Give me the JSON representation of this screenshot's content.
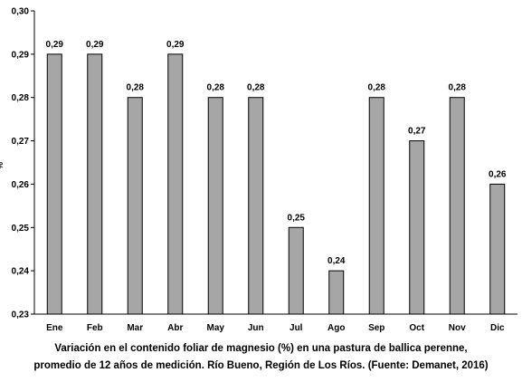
{
  "chart_data": {
    "type": "bar",
    "categories": [
      "Ene",
      "Feb",
      "Mar",
      "Abr",
      "May",
      "Jun",
      "Jul",
      "Ago",
      "Sep",
      "Oct",
      "Nov",
      "Dic"
    ],
    "values": [
      0.29,
      0.29,
      0.28,
      0.29,
      0.28,
      0.28,
      0.25,
      0.24,
      0.28,
      0.27,
      0.28,
      0.26
    ],
    "value_labels": [
      "0,29",
      "0,29",
      "0,28",
      "0,29",
      "0,28",
      "0,28",
      "0,25",
      "0,24",
      "0,28",
      "0,27",
      "0,28",
      "0,26"
    ],
    "ylabel": "%",
    "ylim": [
      0.23,
      0.3
    ],
    "yticks": [
      0.23,
      0.24,
      0.25,
      0.26,
      0.27,
      0.28,
      0.29,
      0.3
    ],
    "ytick_labels": [
      "0,23",
      "0,24",
      "0,25",
      "0,26",
      "0,27",
      "0,28",
      "0,29",
      "0,30"
    ],
    "grid": false,
    "bar_color": "#a6a6a6",
    "bar_edge_color": "#000000"
  },
  "caption": {
    "line1": "Variación en el contenido foliar de magnesio (%) en una pastura de ballica perenne,",
    "line2": "promedio de 12 años de medición. Río Bueno, Región de Los Ríos. (Fuente: Demanet, 2016)"
  }
}
